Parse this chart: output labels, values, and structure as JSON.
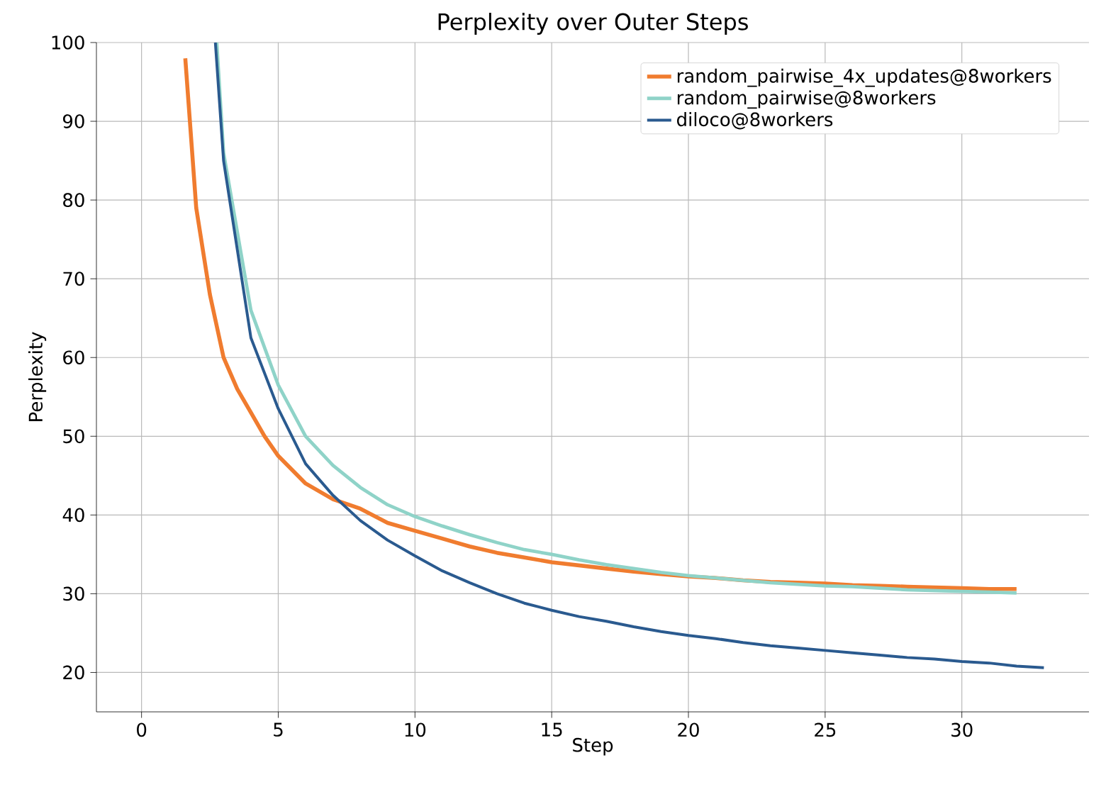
{
  "chart_data": {
    "type": "line",
    "title": "Perplexity over Outer Steps",
    "xlabel": "Step",
    "ylabel": "Perplexity",
    "xlim": [
      -1.65,
      34.65
    ],
    "ylim": [
      15,
      100
    ],
    "xticks": [
      0,
      5,
      10,
      15,
      20,
      25,
      30
    ],
    "yticks": [
      20,
      30,
      40,
      50,
      60,
      70,
      80,
      90,
      100
    ],
    "grid": true,
    "legend": "top right",
    "marker": "none",
    "line_style": "solid",
    "series": [
      {
        "name": "random_pairwise_4x_updates@8workers",
        "color": "#f07c2f",
        "x": [
          1.6,
          2,
          2.5,
          3,
          3.5,
          4,
          4.5,
          5,
          6,
          7,
          8,
          9,
          10,
          11,
          12,
          13,
          14,
          15,
          16,
          17,
          18,
          19,
          20,
          21,
          22,
          23,
          24,
          25,
          26,
          27,
          28,
          29,
          30,
          31,
          32
        ],
        "values": [
          98,
          79,
          68,
          60,
          56,
          53,
          50,
          47.5,
          44,
          42,
          40.8,
          39,
          38,
          37,
          36,
          35.2,
          34.6,
          34,
          33.6,
          33.2,
          32.8,
          32.5,
          32.2,
          32,
          31.7,
          31.5,
          31.4,
          31.3,
          31.1,
          31,
          30.9,
          30.8,
          30.7,
          30.6,
          30.6
        ]
      },
      {
        "name": "random_pairwise@8workers",
        "color": "#8fd3c8",
        "x": [
          2.75,
          3,
          4,
          5,
          6,
          7,
          8,
          9,
          10,
          11,
          12,
          13,
          14,
          15,
          16,
          17,
          18,
          19,
          20,
          21,
          22,
          23,
          24,
          25,
          26,
          27,
          28,
          29,
          30,
          31,
          32
        ],
        "values": [
          100,
          86,
          66,
          56.5,
          50,
          46.3,
          43.5,
          41.3,
          39.8,
          38.6,
          37.5,
          36.5,
          35.6,
          35,
          34.3,
          33.7,
          33.2,
          32.7,
          32.3,
          32,
          31.7,
          31.4,
          31.2,
          31,
          30.9,
          30.7,
          30.5,
          30.4,
          30.3,
          30.2,
          30.1
        ]
      },
      {
        "name": "diloco@8workers",
        "color": "#2a5a8f",
        "x": [
          2.7,
          3,
          4,
          5,
          6,
          7,
          8,
          9,
          10,
          11,
          12,
          13,
          14,
          15,
          16,
          17,
          18,
          19,
          20,
          21,
          22,
          23,
          24,
          25,
          26,
          27,
          28,
          29,
          30,
          31,
          32,
          33
        ],
        "values": [
          100,
          85,
          62.5,
          53.5,
          46.5,
          42.5,
          39.3,
          36.8,
          34.8,
          32.9,
          31.4,
          30,
          28.8,
          27.9,
          27.1,
          26.5,
          25.8,
          25.2,
          24.7,
          24.3,
          23.8,
          23.4,
          23.1,
          22.8,
          22.5,
          22.2,
          21.9,
          21.7,
          21.4,
          21.2,
          20.8,
          20.6
        ]
      }
    ]
  }
}
